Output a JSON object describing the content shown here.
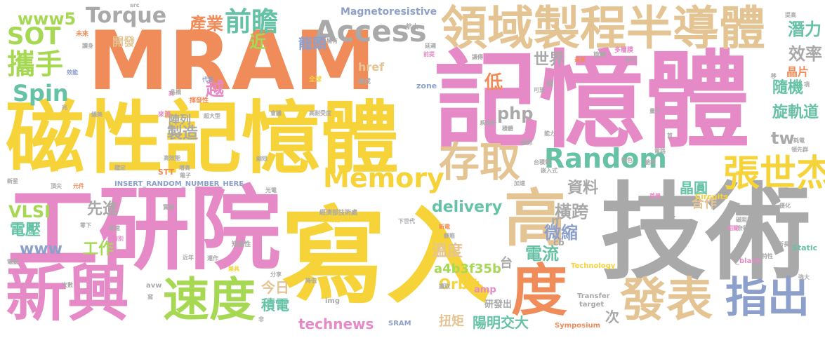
{
  "words": [
    {
      "text": "MRAM",
      "color": "#f08c5a"
    },
    {
      "text": "記憶體",
      "color": "#e58ac6"
    },
    {
      "text": "磁性記憶體",
      "color": "#f7d33a"
    },
    {
      "text": "工研院",
      "color": "#e58ac6"
    },
    {
      "text": "寫入",
      "color": "#f7d33a"
    },
    {
      "text": "技術",
      "color": "#a9a9a9"
    },
    {
      "text": "高",
      "color": "#e5c494"
    },
    {
      "text": "度",
      "color": "#f08c5a"
    },
    {
      "text": "新興",
      "color": "#e58ac6"
    },
    {
      "text": "速度",
      "color": "#a6d854"
    },
    {
      "text": "發表",
      "color": "#e5c494"
    },
    {
      "text": "指出",
      "color": "#8da0cb"
    },
    {
      "text": "領域製程半導體",
      "color": "#e5c494"
    },
    {
      "text": "Access",
      "color": "#a9a9a9"
    },
    {
      "text": "Memory",
      "color": "#f7d33a"
    },
    {
      "text": "Random",
      "color": "#66c2a5"
    },
    {
      "text": "存取",
      "color": "#e5c494"
    },
    {
      "text": "張世杰",
      "color": "#f7d33a"
    },
    {
      "text": "前瞻",
      "color": "#66c2a5"
    },
    {
      "text": "Torque",
      "color": "#a9a9a9"
    },
    {
      "text": "SOT",
      "color": "#a6d854"
    },
    {
      "text": "www5",
      "color": "#a6d854"
    },
    {
      "text": "攜手",
      "color": "#a6d854"
    },
    {
      "text": "Spin",
      "color": "#66c2a5"
    },
    {
      "text": "產業",
      "color": "#f08c5a"
    },
    {
      "text": "近",
      "color": "#a6d854"
    },
    {
      "text": "龍頭",
      "color": "#8da0cb"
    },
    {
      "text": "世界",
      "color": "#a9a9a9"
    },
    {
      "text": "低",
      "color": "#f08c5a"
    },
    {
      "text": "越",
      "color": "#e58ac6"
    },
    {
      "text": "php",
      "color": "#a9a9a9"
    },
    {
      "text": "delivery",
      "color": "#66c2a5"
    },
    {
      "text": "VLSI",
      "color": "#a6d854"
    },
    {
      "text": "先進",
      "color": "#a9a9a9"
    },
    {
      "text": "電壓",
      "color": "#66c2a5"
    },
    {
      "text": "www",
      "color": "#8da0cb"
    },
    {
      "text": "工作",
      "color": "#a6d854"
    },
    {
      "text": "製造",
      "color": "#a9a9a9"
    },
    {
      "text": "資料",
      "color": "#a9a9a9"
    },
    {
      "text": "橫跨",
      "color": "#a9a9a9"
    },
    {
      "text": "溫度",
      "color": "#e5c494"
    },
    {
      "text": "微縮",
      "color": "#8da0cb"
    },
    {
      "text": "電流",
      "color": "#66c2a5"
    },
    {
      "text": "台",
      "color": "#a9a9a9"
    },
    {
      "text": "a4b3f35b",
      "color": "#a6d854"
    },
    {
      "text": "今日",
      "color": "#e5c494"
    },
    {
      "text": "積電",
      "color": "#66c2a5"
    },
    {
      "text": "technews",
      "color": "#e58ac6"
    },
    {
      "text": "Orbit",
      "color": "#f7d33a"
    },
    {
      "text": "扭矩",
      "color": "#e5c494"
    },
    {
      "text": "陽明交大",
      "color": "#66c2a5"
    },
    {
      "text": "研發出",
      "color": "#a9a9a9"
    },
    {
      "text": "次",
      "color": "#a9a9a9"
    },
    {
      "text": "潛力",
      "color": "#66c2a5"
    },
    {
      "text": "效率",
      "color": "#a9a9a9"
    },
    {
      "text": "隨機",
      "color": "#66c2a5"
    },
    {
      "text": "旋軌道",
      "color": "#66c2a5"
    },
    {
      "text": "晶片",
      "color": "#f08c5a"
    },
    {
      "text": "tw",
      "color": "#a9a9a9"
    },
    {
      "text": "晶圓",
      "color": "#66c2a5"
    },
    {
      "text": "合作",
      "color": "#e5c494"
    },
    {
      "text": "Magnetoresistive",
      "color": "#8da0cb"
    },
    {
      "text": "href",
      "color": "#e5c494"
    },
    {
      "text": "開發",
      "color": "#e5c494"
    },
    {
      "text": "陣列",
      "color": "#a9a9a9"
    },
    {
      "text": "amp",
      "color": "#e58ac6"
    },
    {
      "text": "ck",
      "color": "#a9a9a9"
    },
    {
      "text": "cb",
      "color": "#a9a9a9"
    },
    {
      "text": "n",
      "color": "#a9a9a9"
    },
    {
      "text": "a",
      "color": "#a9a9a9"
    },
    {
      "text": "zone",
      "color": "#8da0cb"
    },
    {
      "text": "STT",
      "color": "#f08c5a"
    },
    {
      "text": "INSERT_RANDOM_NUMBER_HERE",
      "color": "#8da0cb"
    },
    {
      "text": "SRAM",
      "color": "#8da0cb"
    },
    {
      "text": "Circuits",
      "color": "#f7d33a"
    },
    {
      "text": "Static",
      "color": "#66c2a5"
    },
    {
      "text": "_blank",
      "color": "#e58ac6"
    },
    {
      "text": "Technology",
      "color": "#f7d33a"
    },
    {
      "text": "Symposium",
      "color": "#f08c5a"
    },
    {
      "text": "Transfer",
      "color": "#a9a9a9"
    },
    {
      "text": "target",
      "color": "#a9a9a9"
    },
    {
      "text": "img",
      "color": "#a9a9a9"
    },
    {
      "text": "avw",
      "color": "#a9a9a9"
    },
    {
      "text": "src",
      "color": "#a9a9a9"
    },
    {
      "text": "未來",
      "color": "#f08c5a"
    },
    {
      "text": "讀身",
      "color": "#a9a9a9"
    },
    {
      "text": "擁有",
      "color": "#a9a9a9"
    },
    {
      "text": "航太",
      "color": "#a9a9a9"
    },
    {
      "text": "延遲",
      "color": "#a9a9a9"
    },
    {
      "text": "前提",
      "color": "#e58ac6"
    },
    {
      "text": "提高",
      "color": "#a9a9a9"
    },
    {
      "text": "多層膜",
      "color": "#e58ac6"
    },
    {
      "text": "移",
      "color": "#a9a9a9"
    },
    {
      "text": "效能",
      "color": "#8da0cb"
    },
    {
      "text": "代表",
      "color": "#8da0cb"
    },
    {
      "text": "全球",
      "color": "#f7d33a"
    },
    {
      "text": "達成",
      "color": "#a9a9a9"
    },
    {
      "text": "讓傳",
      "color": "#a9a9a9"
    },
    {
      "text": "運算",
      "color": "#f08c5a"
    },
    {
      "text": "世代",
      "color": "#a9a9a9"
    },
    {
      "text": "旋轉",
      "color": "#a9a9a9"
    },
    {
      "text": "揮發性",
      "color": "#f08c5a"
    },
    {
      "text": "高耐受度",
      "color": "#a9a9a9"
    },
    {
      "text": "超大型",
      "color": "#a9a9a9"
    },
    {
      "text": "會議",
      "color": "#a9a9a9"
    },
    {
      "text": "來源",
      "color": "#e58ac6"
    },
    {
      "text": "嬌美",
      "color": "#a9a9a9"
    },
    {
      "text": "高效能",
      "color": "#a9a9a9"
    },
    {
      "text": "穩定",
      "color": "#a9a9a9"
    },
    {
      "text": "增高",
      "color": "#a9a9a9"
    },
    {
      "text": "縮短",
      "color": "#a9a9a9"
    },
    {
      "text": "光電",
      "color": "#a9a9a9"
    },
    {
      "text": "經濟部技術處",
      "color": "#a9a9a9"
    },
    {
      "text": "多功能",
      "color": "#f7d33a"
    },
    {
      "text": "實驗",
      "color": "#a9a9a9"
    },
    {
      "text": "新星",
      "color": "#a9a9a9"
    },
    {
      "text": "頂尖",
      "color": "#a9a9a9"
    },
    {
      "text": "元件",
      "color": "#f08c5a"
    },
    {
      "text": "零下",
      "color": "#a9a9a9"
    },
    {
      "text": "高速",
      "color": "#a9a9a9"
    },
    {
      "text": "特別",
      "color": "#e58ac6"
    },
    {
      "text": "電腦",
      "color": "#a9a9a9"
    },
    {
      "text": "矩磁性",
      "color": "#a9a9a9"
    },
    {
      "text": "近年",
      "color": "#a9a9a9"
    },
    {
      "text": "運作",
      "color": "#a9a9a9"
    },
    {
      "text": "兼具",
      "color": "#f7d33a"
    },
    {
      "text": "分享",
      "color": "#a9a9a9"
    },
    {
      "text": "降低",
      "color": "#a9a9a9"
    },
    {
      "text": "讀取",
      "color": "#a9a9a9"
    },
    {
      "text": "非",
      "color": "#a9a9a9"
    },
    {
      "text": "下世代",
      "color": "#a9a9a9"
    },
    {
      "text": "新電",
      "color": "#f08c5a"
    },
    {
      "text": "靜態",
      "color": "#a9a9a9"
    },
    {
      "text": "系統所",
      "color": "#a9a9a9"
    },
    {
      "text": "積體",
      "color": "#a9a9a9"
    },
    {
      "text": "趨勢",
      "color": "#a9a9a9"
    },
    {
      "text": "能力",
      "color": "#a9a9a9"
    },
    {
      "text": "台積電",
      "color": "#a9a9a9"
    },
    {
      "text": "嵌入式",
      "color": "#a9a9a9"
    },
    {
      "text": "可望",
      "color": "#a9a9a9"
    },
    {
      "text": "量子",
      "color": "#a9a9a9"
    },
    {
      "text": "首",
      "color": "#a9a9a9"
    },
    {
      "text": "特色",
      "color": "#a9a9a9"
    },
    {
      "text": "驗證",
      "color": "#a9a9a9"
    },
    {
      "text": "電路",
      "color": "#a9a9a9"
    },
    {
      "text": "耗電",
      "color": "#a9a9a9"
    },
    {
      "text": "領先群",
      "color": "#a9a9a9"
    },
    {
      "text": "國際",
      "color": "#a9a9a9"
    },
    {
      "text": "首器",
      "color": "#e58ac6"
    },
    {
      "text": "加速",
      "color": "#a9a9a9"
    },
    {
      "text": "優化",
      "color": "#a9a9a9"
    },
    {
      "text": "磁阻式",
      "color": "#a9a9a9"
    },
    {
      "text": "奈秒",
      "color": "#a9a9a9"
    },
    {
      "text": "相關",
      "color": "#e58ac6"
    },
    {
      "text": "論文",
      "color": "#a9a9a9"
    },
    {
      "text": "所長",
      "color": "#a9a9a9"
    },
    {
      "text": "特性",
      "color": "#a9a9a9"
    },
    {
      "text": "次數",
      "color": "#a9a9a9"
    },
    {
      "text": "強大",
      "color": "#a9a9a9"
    },
    {
      "text": "項",
      "color": "#a9a9a9"
    },
    {
      "text": "電子",
      "color": "#a9a9a9"
    },
    {
      "text": "高",
      "color": "#e58ac6"
    },
    {
      "text": "晶橋",
      "color": "#a9a9a9"
    },
    {
      "text": "窩",
      "color": "#a9a9a9"
    },
    {
      "text": "兆",
      "color": "#a9a9a9"
    }
  ]
}
